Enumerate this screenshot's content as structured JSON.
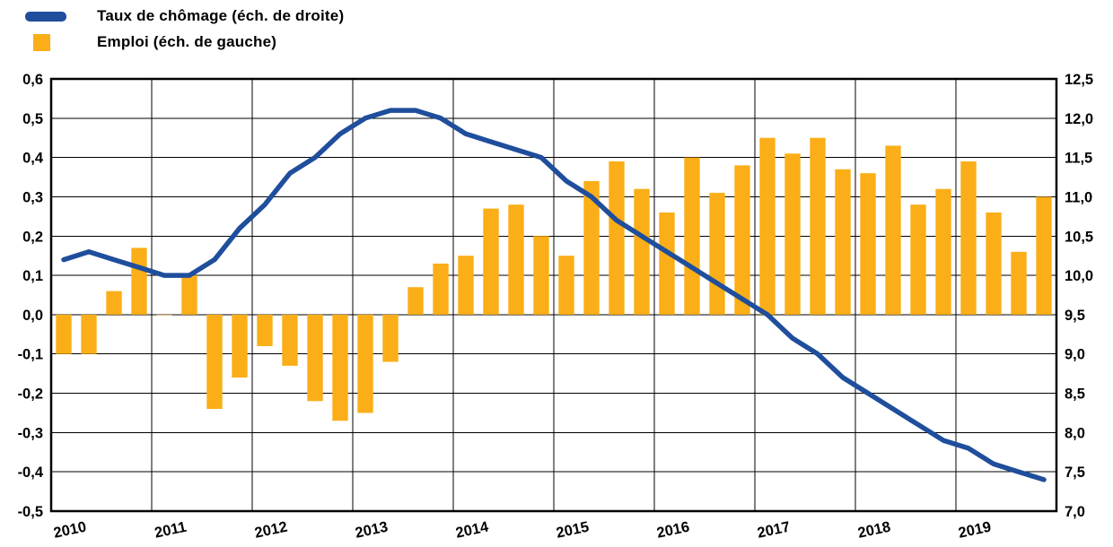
{
  "chart_data": {
    "type": "bar",
    "subtype": "bar-and-line-combo",
    "title": "",
    "legend": [
      {
        "label": "Taux de chômage (éch. de droite)",
        "series": "line",
        "color": "#1f4e9c"
      },
      {
        "label": "Emploi (éch. de gauche)",
        "series": "bar",
        "color": "#fbae17"
      }
    ],
    "colors": {
      "line": "#1f4e9c",
      "bar": "#fbae17",
      "grid": "#000000",
      "border": "#000000",
      "text": "#000000",
      "background": "#ffffff"
    },
    "x_years": [
      "2010",
      "2011",
      "2012",
      "2013",
      "2014",
      "2015",
      "2016",
      "2017",
      "2018",
      "2019"
    ],
    "quarters_per_year": 4,
    "left_axis": {
      "min": -0.5,
      "max": 0.6,
      "step": 0.1,
      "tick_labels": [
        "0,6",
        "0,5",
        "0,4",
        "0,3",
        "0,2",
        "0,1",
        "0,0",
        "-0,1",
        "-0,2",
        "-0,3",
        "-0,4",
        "-0,5"
      ]
    },
    "right_axis": {
      "min": 7.0,
      "max": 12.5,
      "step": 0.5,
      "tick_labels": [
        "12,5",
        "12,0",
        "11,5",
        "11,0",
        "10,5",
        "10,0",
        "9,5",
        "9,0",
        "8,5",
        "8,0",
        "7,5",
        "7,0"
      ]
    },
    "series": [
      {
        "name": "Emploi (éch. de gauche)",
        "type": "bar",
        "axis": "left",
        "frequency": "quarterly",
        "values": [
          -0.1,
          -0.1,
          0.06,
          0.17,
          0.0,
          0.1,
          -0.24,
          -0.16,
          -0.08,
          -0.13,
          -0.22,
          -0.27,
          -0.25,
          -0.12,
          0.07,
          0.13,
          0.15,
          0.27,
          0.28,
          0.2,
          0.15,
          0.34,
          0.39,
          0.32,
          0.26,
          0.4,
          0.31,
          0.38,
          0.45,
          0.41,
          0.45,
          0.37,
          0.36,
          0.43,
          0.28,
          0.32,
          0.39,
          0.26,
          0.16,
          0.3
        ]
      },
      {
        "name": "Taux de chômage (éch. de droite)",
        "type": "line",
        "axis": "right",
        "frequency": "quarterly",
        "values": [
          10.2,
          10.3,
          10.2,
          10.1,
          10.0,
          10.0,
          10.2,
          10.6,
          10.9,
          11.3,
          11.5,
          11.8,
          12.0,
          12.1,
          12.1,
          12.0,
          11.8,
          11.7,
          11.6,
          11.5,
          11.2,
          11.0,
          10.7,
          10.5,
          10.3,
          10.1,
          9.9,
          9.7,
          9.5,
          9.2,
          9.0,
          8.7,
          8.5,
          8.3,
          8.1,
          7.9,
          7.8,
          7.6,
          7.5,
          7.4
        ]
      }
    ],
    "layout": {
      "grid": true,
      "legend_position": "top-left"
    }
  }
}
